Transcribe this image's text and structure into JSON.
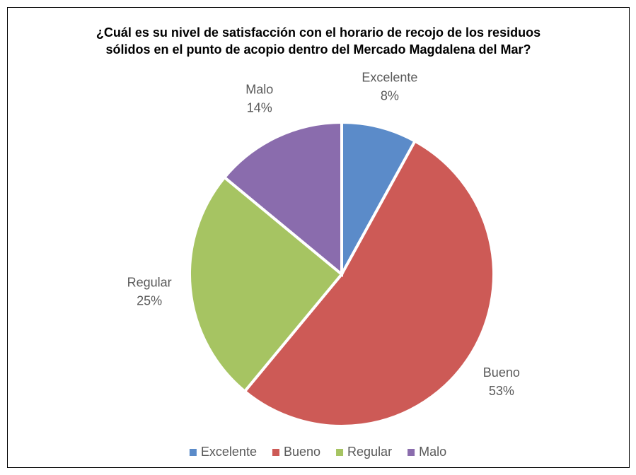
{
  "chart_data": {
    "type": "pie",
    "title": "¿Cuál es su nivel de satisfacción con el horario de recojo de los residuos sólidos en el punto de acopio dentro del  Mercado Magdalena del Mar?",
    "categories": [
      "Excelente",
      "Bueno",
      "Regular",
      "Malo"
    ],
    "values": [
      8,
      53,
      25,
      14
    ],
    "value_labels": [
      "8%",
      "53%",
      "25%",
      "14%"
    ],
    "colors": [
      "#5b8bc9",
      "#cd5a56",
      "#a6c462",
      "#8a6cad"
    ],
    "legend": "bottom"
  }
}
